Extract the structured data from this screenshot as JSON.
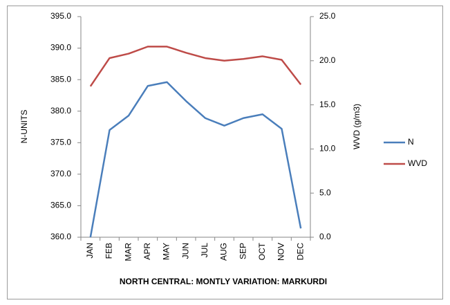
{
  "chart_data": {
    "type": "line",
    "title": "NORTH CENTRAL: MONTLY VARIATION: MARKURDI",
    "y_label": "N-UNITS",
    "y2_label": "WVD (g/m3)",
    "categories": [
      "JAN",
      "FEB",
      "MAR",
      "APR",
      "MAY",
      "JUN",
      "JUL",
      "AUG",
      "SEP",
      "OCT",
      "NOV",
      "DEC"
    ],
    "series": [
      {
        "name": "N",
        "color": "#4a7ebb",
        "values": [
          360.0,
          377.0,
          379.3,
          384.0,
          384.6,
          381.6,
          378.9,
          377.7,
          378.9,
          379.5,
          377.2,
          361.4
        ]
      },
      {
        "name": "WVD",
        "color": "#be4b48",
        "axis": "y2",
        "values": [
          17.1,
          20.3,
          20.8,
          21.6,
          21.6,
          20.9,
          20.3,
          20.0,
          20.2,
          20.5,
          20.1,
          17.3
        ]
      }
    ],
    "ylim": [
      360,
      395
    ],
    "yticks": [
      {
        "value": 360,
        "label": "360.0"
      },
      {
        "value": 365,
        "label": "365.0"
      },
      {
        "value": 370,
        "label": "370.0"
      },
      {
        "value": 375,
        "label": "375.0"
      },
      {
        "value": 380,
        "label": "380.0"
      },
      {
        "value": 385,
        "label": "385.0"
      },
      {
        "value": 390,
        "label": "390.0"
      },
      {
        "value": 395,
        "label": "395.0"
      }
    ],
    "y2lim": [
      0,
      25
    ],
    "y2ticks": [
      {
        "value": 0,
        "label": "0.0"
      },
      {
        "value": 5,
        "label": "5.0"
      },
      {
        "value": 10,
        "label": "10.0"
      },
      {
        "value": 15,
        "label": "15.0"
      },
      {
        "value": 20,
        "label": "20.0"
      },
      {
        "value": 25,
        "label": "25.0"
      }
    ],
    "grid": false,
    "legend": "right"
  }
}
